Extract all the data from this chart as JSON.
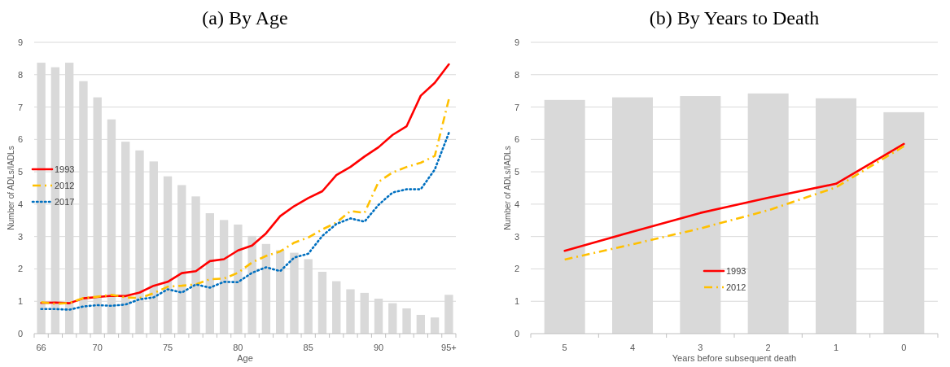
{
  "chart_data": [
    {
      "type": "bar",
      "title": "(a) By Age",
      "xlabel": "Age",
      "ylabel": "Number of ADLs/IADLs",
      "categories": [
        "66",
        null,
        null,
        null,
        "70",
        null,
        null,
        null,
        null,
        "75",
        null,
        null,
        null,
        null,
        "80",
        null,
        null,
        null,
        null,
        "85",
        null,
        null,
        null,
        null,
        "90",
        null,
        null,
        null,
        null,
        "95+"
      ],
      "series": [
        {
          "color": "#d9d9d9",
          "values": [
            8.37,
            8.23,
            8.37,
            7.8,
            7.3,
            6.62,
            5.93,
            5.66,
            5.32,
            4.86,
            4.59,
            4.24,
            3.72,
            3.51,
            3.37,
            3.02,
            2.77,
            2.58,
            2.5,
            2.3,
            1.91,
            1.62,
            1.37,
            1.26,
            1.08,
            0.94,
            0.78,
            0.58,
            0.5,
            1.2
          ]
        },
        {
          "type": "line",
          "name": "1993",
          "color": "#ff0000",
          "line_style": "solid",
          "values": [
            0.95,
            0.96,
            0.94,
            1.09,
            1.13,
            1.17,
            1.16,
            1.27,
            1.48,
            1.6,
            1.87,
            1.93,
            2.24,
            2.3,
            2.57,
            2.72,
            3.1,
            3.63,
            3.94,
            4.19,
            4.4,
            4.9,
            5.15,
            5.47,
            5.76,
            6.14,
            6.41,
            7.35,
            7.75,
            8.32
          ]
        },
        {
          "type": "line",
          "name": "2012",
          "color": "#ffc000",
          "line_style": "dashed",
          "values": [
            0.97,
            0.92,
            0.95,
            1.1,
            1.14,
            1.2,
            1.12,
            1.1,
            1.25,
            1.45,
            1.48,
            1.52,
            1.68,
            1.7,
            1.88,
            2.2,
            2.4,
            2.54,
            2.81,
            2.97,
            3.22,
            3.43,
            3.79,
            3.73,
            4.69,
            4.98,
            5.15,
            5.28,
            5.49,
            7.24
          ]
        },
        {
          "type": "line",
          "name": "2017",
          "color": "#0070c0",
          "line_style": "dotted",
          "values": [
            0.76,
            0.76,
            0.74,
            0.84,
            0.88,
            0.86,
            0.9,
            1.06,
            1.12,
            1.37,
            1.27,
            1.52,
            1.42,
            1.6,
            1.59,
            1.88,
            2.05,
            1.93,
            2.35,
            2.47,
            3.02,
            3.39,
            3.56,
            3.46,
            3.98,
            4.36,
            4.46,
            4.46,
            5.07,
            6.2
          ]
        }
      ],
      "ylim": [
        0,
        9
      ],
      "yticks": [
        0,
        1,
        2,
        3,
        4,
        5,
        6,
        7,
        8,
        9
      ],
      "grid": "y",
      "legend": "left"
    },
    {
      "type": "bar",
      "title": "(b) By Years to Death",
      "xlabel": "Years before subsequent death",
      "ylabel": "Number of ADLs/IADLs",
      "categories": [
        "5",
        "4",
        "3",
        "2",
        "1",
        "0"
      ],
      "series": [
        {
          "color": "#d9d9d9",
          "values": [
            7.22,
            7.3,
            7.34,
            7.42,
            7.27,
            6.84
          ]
        },
        {
          "type": "line",
          "name": "1993",
          "color": "#ff0000",
          "line_style": "solid",
          "values": [
            2.56,
            3.15,
            3.73,
            4.2,
            4.63,
            5.86
          ]
        },
        {
          "type": "line",
          "name": "2012",
          "color": "#ffc000",
          "line_style": "dashed",
          "values": [
            2.29,
            2.76,
            3.25,
            3.81,
            4.52,
            5.79
          ]
        }
      ],
      "ylim": [
        0,
        9
      ],
      "yticks": [
        0,
        1,
        2,
        3,
        4,
        5,
        6,
        7,
        8,
        9
      ],
      "grid": "y",
      "legend": "bottom"
    }
  ]
}
